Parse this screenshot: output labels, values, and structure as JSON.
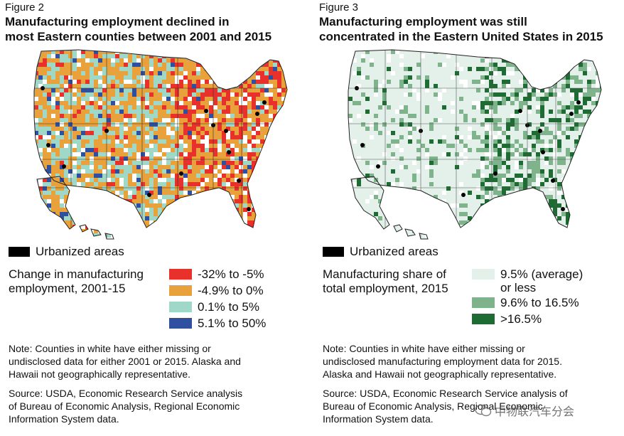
{
  "colors": {
    "red": "#e8312a",
    "orange": "#e9a23b",
    "teal": "#9fd8c6",
    "blue": "#2f4fa0",
    "share_low": "#e3f1ea",
    "share_mid": "#7fb38c",
    "share_high": "#1e6b33",
    "urban": "#000000"
  },
  "left": {
    "figure": "Figure 2",
    "title_line1": "Manufacturing employment declined in",
    "title_line2": "most Eastern counties between 2001 and 2015",
    "urbanized_label": "Urbanized areas",
    "legend_title_line1": "Change in manufacturing",
    "legend_title_line2": "employment, 2001-15",
    "legend": [
      "-32% to -5%",
      "-4.9% to 0%",
      "0.1% to 5%",
      "5.1% to 50%"
    ],
    "note_line1": "Note: Counties in white have either missing or",
    "note_line2": "undisclosed data for either 2001 or 2015. Alaska and",
    "note_line3": "Hawaii not geographically representative.",
    "source_line1": "Source: USDA, Economic Research Service analysis",
    "source_line2": "of Bureau of Economic Analysis, Regional Economic",
    "source_line3": "Information System data."
  },
  "right": {
    "figure": "Figure 3",
    "title_line1": "Manufacturing employment was still",
    "title_line2": "concentrated in the Eastern United States in 2015",
    "urbanized_label": "Urbanized areas",
    "legend_title_line1": "Manufacturing share of",
    "legend_title_line2": "total employment, 2015",
    "legend_1_line1": "9.5% (average)",
    "legend_1_line2": "or less",
    "legend_2": "9.6% to 16.5%",
    "legend_3": ">16.5%",
    "note_line1": "Note: Counties in white have either missing or",
    "note_line2": "undisclosed manufacturing employment data for 2015.",
    "note_line3": "Alaska and Hawaii not geographically representative.",
    "source_line1": "Source: USDA, Economic Research Service analysis of",
    "source_line2": "Bureau of Economic Analysis, Regional Economic",
    "source_line3": "Information System data."
  },
  "watermark": "中物联汽车分会"
}
